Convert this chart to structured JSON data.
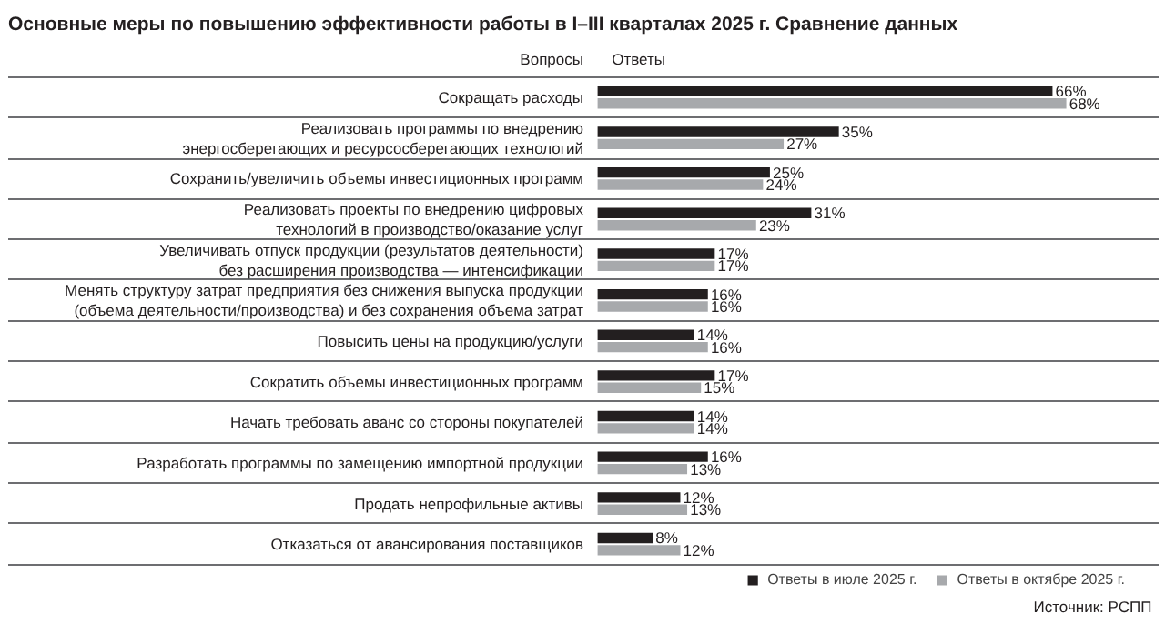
{
  "chart_data": {
    "type": "bar",
    "orientation": "horizontal",
    "title": "Основные меры по повышению эффективности работы в I–III кварталах 2025 г. Сравнение данных",
    "categories": [
      "Сокращать расходы",
      "Реализовать программы по внедрению энергосберегающих и ресурсосберегающих технологий",
      "Сохранить/увеличить объемы инвестиционных программ",
      "Реализовать проекты по внедрению цифровых технологий в производство/оказание услуг",
      "Увеличивать отпуск продукции (результатов деятельности) без расширения производства — интенсификации",
      "Менять структуру затрат предприятия без снижения выпуска продукции (объема деятельности/производства) и без сохранения объема затрат",
      "Повысить цены на продукцию/услуги",
      "Сократить объемы инвестиционных программ",
      "Начать требовать аванс со стороны покупателей",
      "Разработать программы по замещению импортной продукции",
      "Продать непрофильные активы",
      "Отказаться от авансирования поставщиков"
    ],
    "series": [
      {
        "name": "Ответы в июле 2025 г.",
        "color": "#231f20",
        "values": [
          66,
          35,
          25,
          31,
          17,
          16,
          14,
          17,
          14,
          16,
          12,
          8
        ],
        "value_labels": [
          "66%",
          "35%",
          "25%",
          "31%",
          "17%",
          "16%",
          "14%",
          "17%",
          "14%",
          "16%",
          "12%",
          "8%"
        ]
      },
      {
        "name": "Ответы в октябре 2025 г.",
        "color": "#a7a9ac",
        "values": [
          68,
          27,
          24,
          23,
          17,
          16,
          16,
          15,
          14,
          13,
          13,
          12
        ],
        "value_labels": [
          "68%",
          "27%",
          "24%",
          "23%",
          "17%",
          "16%",
          "16%",
          "15%",
          "14%",
          "13%",
          "13%",
          "12%"
        ]
      }
    ],
    "annotations": [
      "Вопросы",
      "Ответы",
      "Источник: РСПП"
    ],
    "grid": "y",
    "legend": "bottom right"
  }
}
